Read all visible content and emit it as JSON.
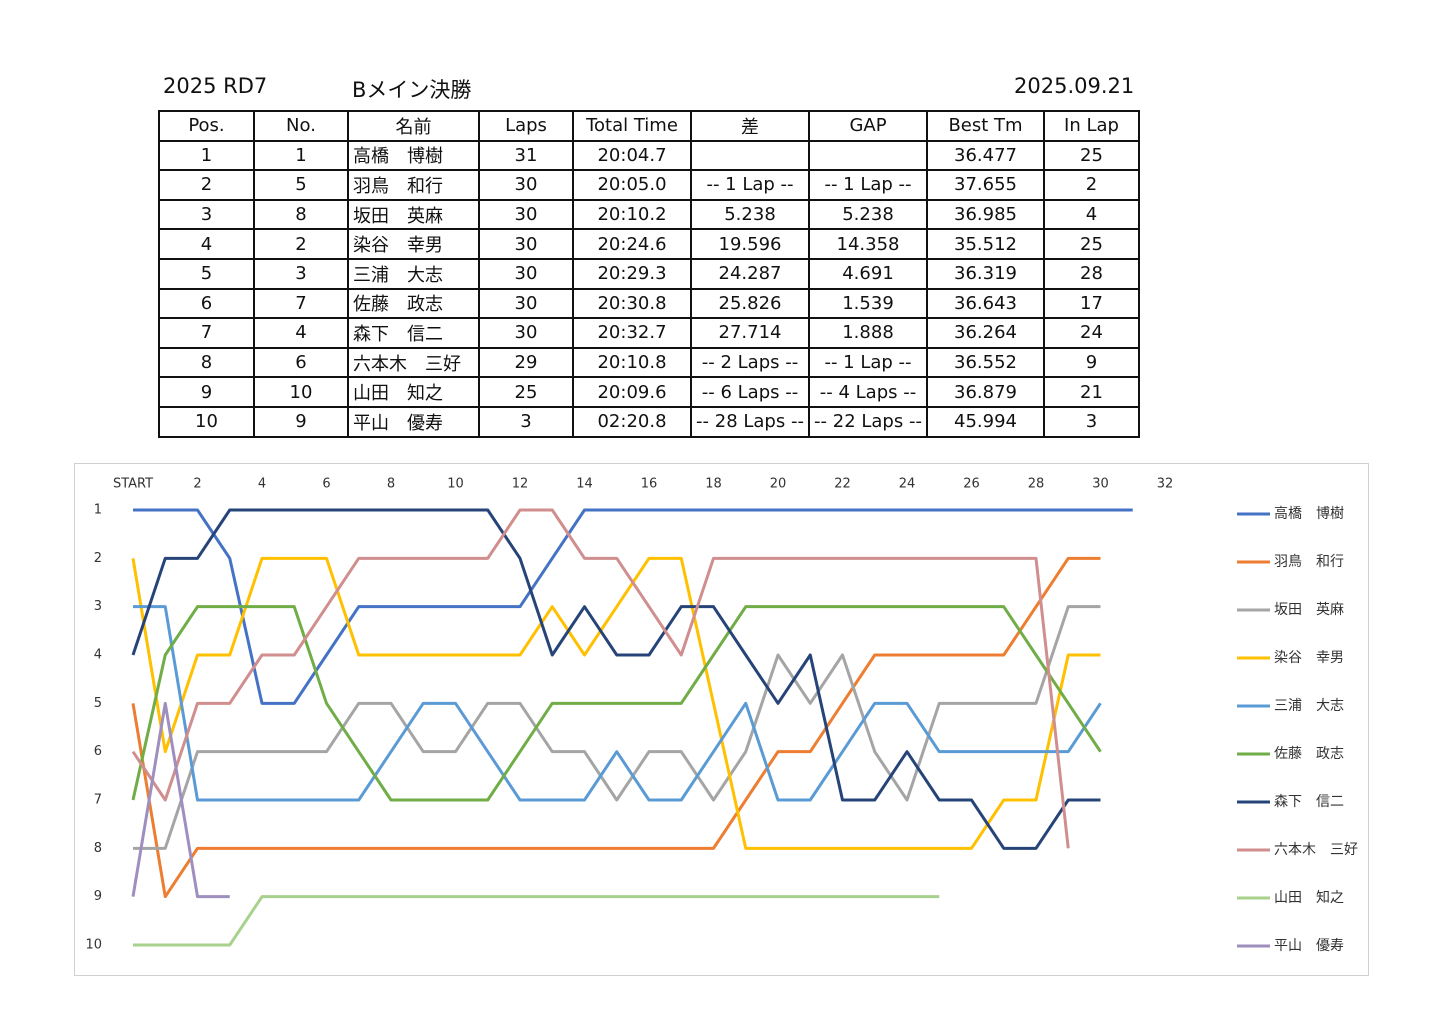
{
  "header": {
    "event": "2025 RD7",
    "race": "Bメイン決勝",
    "date": "2025.09.21"
  },
  "table": {
    "columns": [
      "Pos.",
      "No.",
      "名前",
      "Laps",
      "Total Time",
      "差",
      "GAP",
      "Best Tm",
      "In Lap"
    ],
    "rows": [
      [
        "1",
        "1",
        "高橋　博樹",
        "31",
        "20:04.7",
        null,
        null,
        "36.477",
        "25"
      ],
      [
        "2",
        "5",
        "羽鳥　和行",
        "30",
        "20:05.0",
        "-- 1 Lap --",
        "-- 1 Lap --",
        "37.655",
        "2"
      ],
      [
        "3",
        "8",
        "坂田　英麻",
        "30",
        "20:10.2",
        "5.238",
        "5.238",
        "36.985",
        "4"
      ],
      [
        "4",
        "2",
        "染谷　幸男",
        "30",
        "20:24.6",
        "19.596",
        "14.358",
        "35.512",
        "25"
      ],
      [
        "5",
        "3",
        "三浦　大志",
        "30",
        "20:29.3",
        "24.287",
        "4.691",
        "36.319",
        "28"
      ],
      [
        "6",
        "7",
        "佐藤　政志",
        "30",
        "20:30.8",
        "25.826",
        "1.539",
        "36.643",
        "17"
      ],
      [
        "7",
        "4",
        "森下　信二",
        "30",
        "20:32.7",
        "27.714",
        "1.888",
        "36.264",
        "24"
      ],
      [
        "8",
        "6",
        "六本木　三好",
        "29",
        "20:10.8",
        "-- 2 Laps --",
        "-- 1 Lap --",
        "36.552",
        "9"
      ],
      [
        "9",
        "10",
        "山田　知之",
        "25",
        "20:09.6",
        "-- 6 Laps --",
        "-- 4 Laps --",
        "36.879",
        "21"
      ],
      [
        "10",
        "9",
        "平山　優寿",
        "3",
        "02:20.8",
        "-- 28 Laps --",
        "-- 22 Laps --",
        "45.994",
        "3"
      ]
    ]
  },
  "chart_data": {
    "type": "line",
    "xaxis_position": "top",
    "legend": "right",
    "x": [
      0,
      1,
      2,
      3,
      4,
      5,
      6,
      7,
      8,
      9,
      10,
      11,
      12,
      13,
      14,
      15,
      16,
      17,
      18,
      19,
      20,
      21,
      22,
      23,
      24,
      25,
      26,
      27,
      28,
      29,
      30,
      31
    ],
    "xlim": [
      0,
      32
    ],
    "xticks": [
      {
        "value": 0,
        "label": "START"
      },
      2,
      4,
      6,
      8,
      10,
      12,
      14,
      16,
      18,
      20,
      22,
      24,
      26,
      28,
      30,
      32
    ],
    "ylim": [
      10,
      1
    ],
    "yticks": [
      1,
      2,
      3,
      4,
      5,
      6,
      7,
      8,
      9,
      10
    ],
    "series": [
      {
        "name": "高橋　博樹",
        "color": "#4472c4",
        "values": [
          1,
          1,
          1,
          2,
          5,
          5,
          4,
          3,
          3,
          3,
          3,
          3,
          3,
          2,
          1,
          1,
          1,
          1,
          1,
          1,
          1,
          1,
          1,
          1,
          1,
          1,
          1,
          1,
          1,
          1,
          1,
          1
        ]
      },
      {
        "name": "羽鳥　和行",
        "color": "#ed7d31",
        "values": [
          5,
          9,
          8,
          8,
          8,
          8,
          8,
          8,
          8,
          8,
          8,
          8,
          8,
          8,
          8,
          8,
          8,
          8,
          8,
          7,
          6,
          6,
          5,
          4,
          4,
          4,
          4,
          4,
          3,
          2,
          2,
          null
        ]
      },
      {
        "name": "坂田　英麻",
        "color": "#a5a5a5",
        "values": [
          8,
          8,
          6,
          6,
          6,
          6,
          6,
          5,
          5,
          6,
          6,
          5,
          5,
          6,
          6,
          7,
          6,
          6,
          7,
          6,
          4,
          5,
          4,
          6,
          7,
          5,
          5,
          5,
          5,
          3,
          3,
          null
        ]
      },
      {
        "name": "染谷　幸男",
        "color": "#ffc000",
        "values": [
          2,
          6,
          4,
          4,
          2,
          2,
          2,
          4,
          4,
          4,
          4,
          4,
          4,
          3,
          4,
          3,
          2,
          2,
          5,
          8,
          8,
          8,
          8,
          8,
          8,
          8,
          8,
          7,
          7,
          4,
          4,
          null
        ]
      },
      {
        "name": "三浦　大志",
        "color": "#5b9bd5",
        "values": [
          3,
          3,
          7,
          7,
          7,
          7,
          7,
          7,
          6,
          5,
          5,
          6,
          7,
          7,
          7,
          6,
          7,
          7,
          6,
          5,
          7,
          7,
          6,
          5,
          5,
          6,
          6,
          6,
          6,
          6,
          5,
          null
        ]
      },
      {
        "name": "佐藤　政志",
        "color": "#70ad47",
        "values": [
          7,
          4,
          3,
          3,
          3,
          3,
          5,
          6,
          7,
          7,
          7,
          7,
          6,
          5,
          5,
          5,
          5,
          5,
          4,
          3,
          3,
          3,
          3,
          3,
          3,
          3,
          3,
          3,
          4,
          5,
          6,
          null
        ]
      },
      {
        "name": "森下　信二",
        "color": "#264478",
        "values": [
          4,
          2,
          2,
          1,
          1,
          1,
          1,
          1,
          1,
          1,
          1,
          1,
          2,
          4,
          3,
          4,
          4,
          3,
          3,
          4,
          5,
          4,
          7,
          7,
          6,
          7,
          7,
          8,
          8,
          7,
          7,
          null
        ]
      },
      {
        "name": "六本木　三好",
        "color": "#d08e8e",
        "values": [
          6,
          7,
          5,
          5,
          4,
          4,
          3,
          2,
          2,
          2,
          2,
          2,
          1,
          1,
          2,
          2,
          3,
          4,
          2,
          2,
          2,
          2,
          2,
          2,
          2,
          2,
          2,
          2,
          2,
          8,
          null,
          null
        ]
      },
      {
        "name": "山田　知之",
        "color": "#a9d18e",
        "values": [
          10,
          10,
          10,
          10,
          9,
          9,
          9,
          9,
          9,
          9,
          9,
          9,
          9,
          9,
          9,
          9,
          9,
          9,
          9,
          9,
          9,
          9,
          9,
          9,
          9,
          9,
          null,
          null,
          null,
          null,
          null,
          null
        ]
      },
      {
        "name": "平山　優寿",
        "color": "#9e8fbf",
        "values": [
          9,
          5,
          9,
          9,
          null,
          null,
          null,
          null,
          null,
          null,
          null,
          null,
          null,
          null,
          null,
          null,
          null,
          null,
          null,
          null,
          null,
          null,
          null,
          null,
          null,
          null,
          null,
          null,
          null,
          null,
          null,
          null
        ]
      }
    ]
  }
}
